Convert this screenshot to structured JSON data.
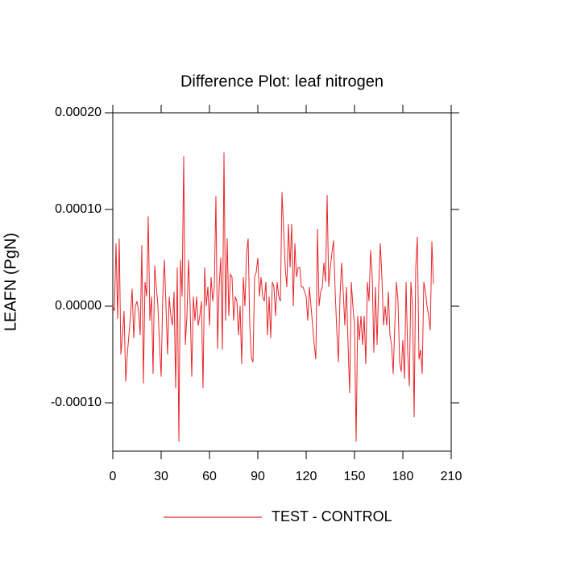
{
  "chart_data": {
    "type": "line",
    "title": "Difference Plot: leaf nitrogen",
    "ylabel": "LEAFN  (PgN)",
    "series": [
      {
        "name": "TEST - CONTROL",
        "color": "#e8262a",
        "values": [
          0,
          -5e-06,
          6.5e-05,
          -1.3e-05,
          7e-05,
          -5e-05,
          -3e-05,
          -5e-06,
          -7.8e-05,
          -5e-05,
          -3e-05,
          -1e-05,
          1.8e-05,
          -3.3e-05,
          0,
          5e-06,
          -5e-06,
          -3e-05,
          6.3e-05,
          -8e-05,
          2.5e-05,
          1e-05,
          9.3e-05,
          -1.5e-05,
          1e-05,
          -7e-05,
          4.2e-05,
          2e-05,
          0,
          -4e-05,
          -7.3e-05,
          1e-05,
          4.8e-05,
          0,
          -5e-05,
          1e-05,
          -1e-05,
          -2e-05,
          1.5e-05,
          -8.5e-05,
          4e-05,
          -0.00014,
          4.8e-05,
          1e-05,
          0.000155,
          -4e-05,
          -1e-05,
          4.8e-05,
          0,
          -7.3e-05,
          1e-05,
          -1.5e-05,
          1e-05,
          -2e-05,
          -1e-05,
          5e-06,
          -8.5e-05,
          4e-05,
          0,
          2e-05,
          -2e-05,
          3e-05,
          5e-06,
          2e-05,
          0.000114,
          -4.4e-05,
          2e-05,
          5e-05,
          -4.5e-05,
          0.000159,
          -1.5e-05,
          7e-05,
          -1e-05,
          3.3e-05,
          3e-05,
          -1.5e-05,
          1e-05,
          5e-06,
          -3e-05,
          0,
          -6e-05,
          3e-05,
          0,
          5.5e-05,
          7e-05,
          -2e-05,
          -5.3e-05,
          -5.8e-05,
          3e-05,
          3.5e-05,
          5e-05,
          1e-05,
          3e-05,
          1e-05,
          5e-06,
          2.5e-05,
          -3e-05,
          1e-05,
          -3.3e-05,
          2.5e-05,
          2e-05,
          -1e-05,
          2.5e-05,
          1e-05,
          5e-06,
          0.000118,
          8e-05,
          4e-05,
          2e-05,
          8.5e-05,
          4e-05,
          8.5e-05,
          0,
          6.5e-05,
          3e-05,
          4e-05,
          4e-05,
          2e-05,
          2e-05,
          1.5e-05,
          1e-05,
          -1.5e-05,
          2e-05,
          0,
          -2e-05,
          -4e-05,
          -5.5e-05,
          8e-05,
          0,
          1.5e-05,
          2e-05,
          4.5e-05,
          2.5e-05,
          0.000115,
          2e-05,
          4e-05,
          5.5e-05,
          6.8e-05,
          1.5e-05,
          -2.5e-05,
          -5.8e-05,
          1e-05,
          4.5e-05,
          1.5e-05,
          -2e-05,
          2e-05,
          -4e-05,
          -9e-05,
          2.5e-05,
          0,
          -2e-05,
          -0.00014,
          -1e-05,
          -3.5e-05,
          -1e-05,
          -4e-05,
          -1e-05,
          -6e-05,
          2.5e-05,
          5e-06,
          5.8e-05,
          3e-05,
          -4.8e-05,
          2e-05,
          -4e-05,
          2e-05,
          6.5e-05,
          3e-05,
          -2e-05,
          0,
          -2e-05,
          1.5e-05,
          -3e-05,
          -4e-05,
          -7e-05,
          -2e-05,
          2.5e-05,
          5e-06,
          -5.8e-05,
          -6.8e-05,
          -3.5e-05,
          -7.5e-05,
          2.5e-05,
          -4.8e-05,
          -8.3e-05,
          2.5e-05,
          0,
          -0.000115,
          4e-05,
          7.2e-05,
          -5.5e-05,
          -4.5e-05,
          -7e-05,
          2.5e-05,
          1.5e-05,
          0,
          -1e-05,
          -2.5e-05,
          6.7e-05,
          2.3e-05
        ]
      }
    ],
    "xlim": [
      0,
      210
    ],
    "xticks": [
      0,
      30,
      60,
      90,
      120,
      150,
      180,
      210
    ],
    "ylim": [
      -0.00015,
      0.0002
    ],
    "yticks": [
      {
        "value": -0.0001,
        "label": "-0.00010"
      },
      {
        "value": 0,
        "label": "0.00000"
      },
      {
        "value": 0.0001,
        "label": "0.00010"
      },
      {
        "value": 0.0002,
        "label": "0.00020"
      }
    ],
    "legend": "bottom"
  }
}
